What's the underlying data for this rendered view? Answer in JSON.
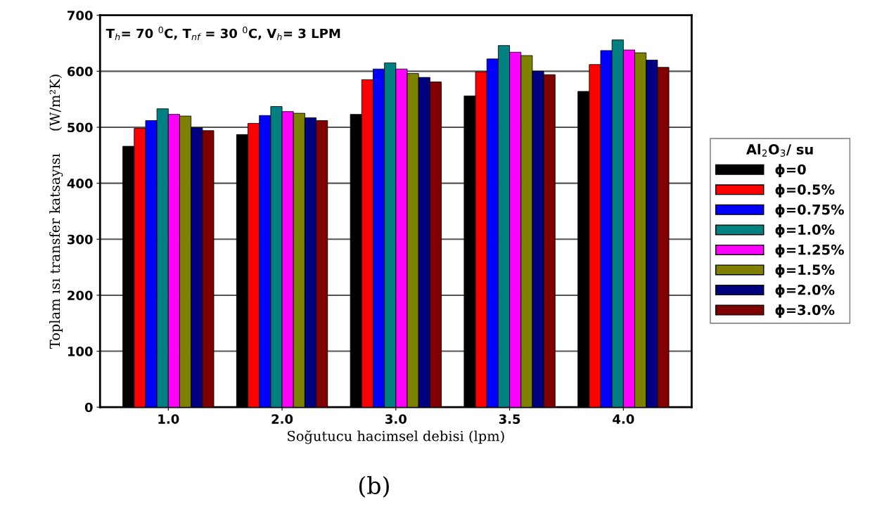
{
  "chart_data": {
    "type": "bar",
    "xlabel": "Soğutucu hacimsel debisi (lpm)",
    "ylabel": "Toplam ısı transfer katsayısı     (W/m²K)",
    "legend_title": "Al$_{2}$O$_{3}$/ su",
    "annotations": [
      "T$_{h}$= 70 $^{0}$C, T$_{nf}$ = 30 $^{0}$C, V$_{h}$= 3 LPM",
      "(b)"
    ],
    "categories": [
      "1.0",
      "2.0",
      "3.0",
      "3.5",
      "4.0"
    ],
    "series": [
      {
        "name": "ϕ=0",
        "color": "#000000",
        "values": [
          466,
          487,
          523,
          556,
          564
        ]
      },
      {
        "name": "ϕ=0.5%",
        "color": "#ff0000",
        "values": [
          498,
          507,
          585,
          599,
          612
        ]
      },
      {
        "name": "ϕ=0.75%",
        "color": "#0000ff",
        "values": [
          512,
          521,
          604,
          622,
          637
        ]
      },
      {
        "name": "ϕ=1.0%",
        "color": "#008080",
        "values": [
          533,
          537,
          615,
          646,
          656
        ]
      },
      {
        "name": "ϕ=1.25%",
        "color": "#ff00ff",
        "values": [
          523,
          528,
          604,
          634,
          638
        ]
      },
      {
        "name": "ϕ=1.5%",
        "color": "#808000",
        "values": [
          520,
          525,
          596,
          628,
          633
        ]
      },
      {
        "name": "ϕ=2.0%",
        "color": "#000080",
        "values": [
          499,
          517,
          589,
          600,
          620
        ]
      },
      {
        "name": "ϕ=3.0%",
        "color": "#800000",
        "values": [
          494,
          512,
          581,
          594,
          607
        ]
      }
    ],
    "ylim": [
      0,
      700
    ],
    "yticks": [
      0,
      100,
      200,
      300,
      400,
      500,
      600,
      700
    ],
    "grid": "y",
    "legend": "right"
  }
}
